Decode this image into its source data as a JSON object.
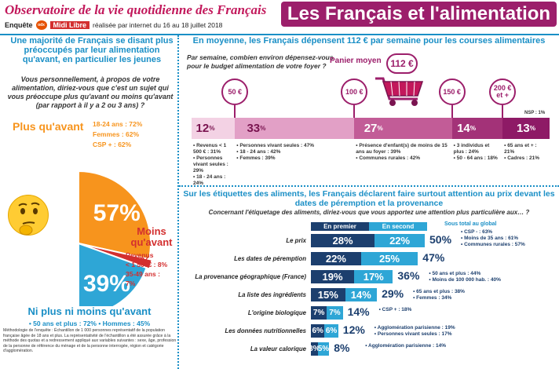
{
  "header": {
    "title_left": "Observatoire de la vie quotidienne des Français",
    "title_right": "Les Français et l'alimentation",
    "enquete_label": "Enquête",
    "partner_logo": "Midi Libre",
    "enquete_detail": "réalisée par internet du 16 au 18 juillet 2018"
  },
  "left": {
    "headline": "Une majorité de Français se disant plus préoccupés par leur alimentation qu'avant, en particulier les jeunes",
    "question": "Vous personnellement, à propos de votre alimentation, diriez-vous que c'est un sujet qui vous préoccupe plus qu'avant ou moins qu'avant (par rapport à il y a 2 ou 3 ans) ?",
    "plus_label": "Plus qu'avant",
    "plus_details": [
      "18-24 ans : 72%",
      "Femmes : 62%",
      "CSP + : 62%"
    ],
    "moins_label": "Moins qu'avant",
    "moins_details": [
      "Revenus",
      "< 1 500€ : 8%",
      "35-49 ans :",
      "7%"
    ],
    "ni_label": "Ni plus ni moins qu'avant",
    "ni_details": "• 50 ans et plus : 72% • Hommes : 45%",
    "methodology": "Méthodologie de l'enquête : Échantillon de 1 000 personnes représentatif de la population française âgée de 18 ans et plus. La représentativité de l'échantillon a été assurée grâce à la méthode des quotas et a redressement appliqué aux variables suivantes : sexe, âge, profession de la personne de référence du ménage et de la personne interrogée, région et catégorie d'agglomération."
  },
  "budget": {
    "headline": "En moyenne, les Français dépensent 112 € par semaine pour les courses alimentaires",
    "question": "Par semaine, combien environ dépensez-vous pour le budget alimentation de votre foyer ?",
    "panier_label": "Panier moyen",
    "panier_value": "112 €",
    "thresholds": [
      "50 €",
      "100 €",
      "150 €",
      "200 € et +"
    ],
    "nsp": "NSP : 1%",
    "segments": [
      {
        "pct": "12",
        "notes": [
          "• Revenus < 1 500 € : 31%",
          "• Personnes vivant seules : 29%",
          "• 18 - 24 ans : 24%"
        ]
      },
      {
        "pct": "33",
        "notes": [
          "• Personnes vivant seules : 47%",
          "• 18 - 24 ans : 42%",
          "• Femmes : 39%"
        ]
      },
      {
        "pct": "27",
        "notes": [
          "• Présence d'enfant(s) de moins de 15 ans au foyer : 39%",
          "• Communes rurales : 42%"
        ]
      },
      {
        "pct": "14",
        "notes": [
          "• 3 individus et plus : 24%",
          "• 50 - 64 ans : 18%"
        ]
      },
      {
        "pct": "13",
        "notes": [
          "• 65 ans et + : 21%",
          "• Cadres : 21%"
        ]
      }
    ],
    "colors": [
      "#f3d2e4",
      "#e2a0c6",
      "#c25c97",
      "#a33278",
      "#8e1a66"
    ]
  },
  "labels": {
    "headline": "Sur les étiquettes des aliments, les Français déclarent faire surtout attention au prix devant les dates de péremption et la provenance",
    "question": "Concernant l'étiquetage des aliments, diriez-vous que vous apportez une attention plus particulière aux… ?",
    "legend_first": "En premier",
    "legend_second": "En second",
    "legend_total": "Sous total au global"
  },
  "chart_data": {
    "type": "bar",
    "title": "Sur les étiquettes des aliments, les Français déclarent faire surtout attention au prix devant les dates de péremption et la provenance",
    "categories": [
      "Le prix",
      "Les dates de péremption",
      "La provenance géographique (France)",
      "La liste des ingrédients",
      "L'origine biologique",
      "Les données nutritionnelles",
      "La valeur calorique"
    ],
    "series": [
      {
        "name": "En premier",
        "values": [
          28,
          22,
          19,
          15,
          7,
          6,
          3
        ]
      },
      {
        "name": "En second",
        "values": [
          22,
          25,
          17,
          14,
          7,
          6,
          5
        ]
      }
    ],
    "totals": [
      50,
      47,
      36,
      29,
      14,
      12,
      8
    ],
    "notes": [
      [
        "• CSP - : 63%",
        "• Moins de 35 ans : 61%",
        "• Communes rurales : 57%"
      ],
      [],
      [
        "• 50 ans et plus : 44%",
        "• Moins de 100 000 hab. : 40%"
      ],
      [
        "• 65 ans et plus : 38%",
        "• Femmes : 34%"
      ],
      [
        "• CSP + : 18%"
      ],
      [
        "• Agglomération parisienne : 19%",
        "• Personnes vivant seules : 17%"
      ],
      [
        "• Agglomération parisienne : 14%"
      ]
    ]
  },
  "pie": {
    "values": [
      57,
      4,
      39
    ],
    "colors": [
      "#f7941d",
      "#d32f2f",
      "#2ea6d6"
    ]
  }
}
